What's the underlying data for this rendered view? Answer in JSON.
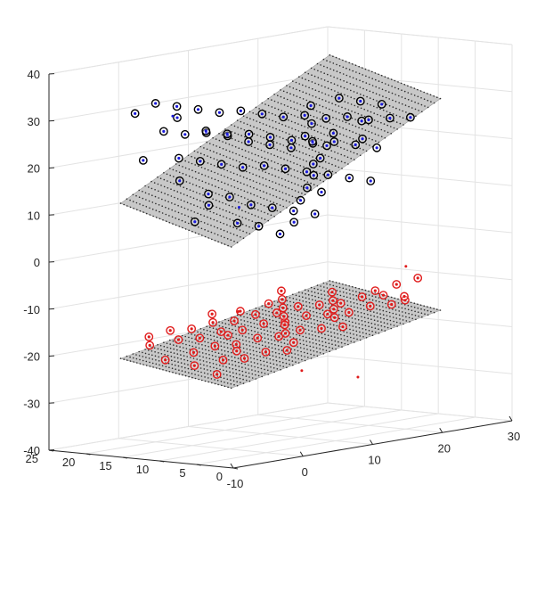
{
  "chart_data": {
    "type": "scatter3d",
    "title": "",
    "xlabel": "",
    "ylabel": "",
    "zlabel": "",
    "xlim": [
      -10,
      30
    ],
    "ylim": [
      0,
      25
    ],
    "zlim": [
      -40,
      40
    ],
    "x_ticks": [
      -10,
      0,
      10,
      20,
      30
    ],
    "y_ticks": [
      0,
      5,
      10,
      15,
      20,
      25
    ],
    "z_ticks": [
      -40,
      -30,
      -20,
      -10,
      0,
      10,
      20,
      30,
      40
    ],
    "grid": true,
    "colors": {
      "upper": "#1a1adb",
      "lower": "#e01b1b",
      "circle_upper": "#000000",
      "plane": "#c8c8c8"
    },
    "planes": [
      {
        "name": "upper plane",
        "x_range": [
          -5,
          25
        ],
        "y_range": [
          5,
          20
        ],
        "z_at_corners": [
          12,
          36,
          5,
          29
        ]
      },
      {
        "name": "lower plane",
        "x_range": [
          -5,
          25
        ],
        "y_range": [
          5,
          20
        ],
        "z_at_corners": [
          -21,
          -12,
          -25,
          -16
        ]
      }
    ],
    "series": [
      {
        "points": [
          [
            -4,
            19,
            31
          ],
          [
            -2,
            17,
            27
          ],
          [
            0,
            16,
            26
          ],
          [
            2,
            15,
            26
          ],
          [
            4,
            14,
            25
          ],
          [
            6,
            13,
            25
          ],
          [
            8,
            12,
            24
          ],
          [
            10,
            11,
            23
          ],
          [
            12,
            10,
            22
          ],
          [
            14,
            9,
            22
          ],
          [
            16,
            8,
            21
          ],
          [
            18,
            7,
            20
          ],
          [
            -3,
            14,
            22
          ],
          [
            -1,
            13,
            21
          ],
          [
            1,
            12,
            20
          ],
          [
            3,
            11,
            19
          ],
          [
            5,
            10,
            19
          ],
          [
            7,
            9,
            18
          ],
          [
            9,
            8,
            17
          ],
          [
            11,
            7,
            16
          ],
          [
            13,
            6,
            15
          ],
          [
            15,
            5,
            14
          ],
          [
            17,
            8,
            22
          ],
          [
            19,
            10,
            25
          ],
          [
            -5,
            12,
            18
          ],
          [
            -3,
            10,
            15
          ],
          [
            -1,
            9,
            14
          ],
          [
            1,
            8,
            12
          ],
          [
            3,
            7,
            11
          ],
          [
            5,
            6,
            10
          ],
          [
            7,
            5,
            9
          ],
          [
            9,
            6,
            13
          ],
          [
            11,
            9,
            18
          ],
          [
            13,
            11,
            22
          ],
          [
            15,
            13,
            25
          ],
          [
            17,
            15,
            28
          ],
          [
            0,
            20,
            32
          ],
          [
            2,
            19,
            31
          ],
          [
            4,
            18,
            30
          ],
          [
            6,
            17,
            29
          ],
          [
            8,
            16,
            29
          ],
          [
            10,
            15,
            28
          ],
          [
            12,
            14,
            27
          ],
          [
            14,
            13,
            27
          ],
          [
            16,
            12,
            26
          ],
          [
            18,
            11,
            26
          ],
          [
            20,
            10,
            25
          ],
          [
            22,
            9,
            25
          ],
          [
            -2,
            7,
            9
          ],
          [
            0,
            6,
            8
          ],
          [
            2,
            5,
            6
          ],
          [
            4,
            5,
            8
          ],
          [
            6,
            6,
            12
          ],
          [
            8,
            7,
            14
          ],
          [
            10,
            8,
            16
          ],
          [
            12,
            9,
            19
          ],
          [
            14,
            10,
            21
          ],
          [
            16,
            11,
            23
          ],
          [
            3,
            16,
            26
          ],
          [
            5,
            15,
            25
          ],
          [
            7,
            14,
            23
          ],
          [
            9,
            13,
            22
          ],
          [
            11,
            12,
            21
          ],
          [
            13,
            12,
            23
          ],
          [
            -4,
            9,
            13
          ],
          [
            20,
            14,
            29
          ],
          [
            22,
            13,
            28
          ],
          [
            24,
            12,
            27
          ],
          [
            -6,
            16,
            22
          ],
          [
            -6,
            9,
            10
          ],
          [
            26,
            10,
            24
          ],
          [
            1,
            18,
            29
          ]
        ]
      },
      {
        "points": [
          [
            -4,
            17,
            -18
          ],
          [
            -2,
            15,
            -17
          ],
          [
            0,
            14,
            -17
          ],
          [
            2,
            13,
            -16
          ],
          [
            4,
            12,
            -16
          ],
          [
            6,
            11,
            -15
          ],
          [
            8,
            10,
            -15
          ],
          [
            10,
            9,
            -14
          ],
          [
            12,
            8,
            -14
          ],
          [
            14,
            7,
            -14
          ],
          [
            16,
            6,
            -13
          ],
          [
            18,
            5,
            -13
          ],
          [
            -3,
            12,
            -19
          ],
          [
            -1,
            11,
            -18
          ],
          [
            1,
            10,
            -18
          ],
          [
            3,
            9,
            -17
          ],
          [
            5,
            8,
            -17
          ],
          [
            7,
            7,
            -16
          ],
          [
            9,
            6,
            -16
          ],
          [
            11,
            5,
            -16
          ],
          [
            13,
            8,
            -15
          ],
          [
            15,
            10,
            -14
          ],
          [
            17,
            12,
            -13
          ],
          [
            19,
            14,
            -12
          ],
          [
            -5,
            10,
            -21
          ],
          [
            -3,
            8,
            -20
          ],
          [
            -1,
            7,
            -20
          ],
          [
            1,
            6,
            -19
          ],
          [
            3,
            5,
            -19
          ],
          [
            5,
            6,
            -18
          ],
          [
            7,
            9,
            -17
          ],
          [
            9,
            11,
            -16
          ],
          [
            11,
            13,
            -15
          ],
          [
            13,
            15,
            -14
          ],
          [
            15,
            17,
            -13
          ],
          [
            17,
            19,
            -12
          ],
          [
            -2,
            19,
            -17
          ],
          [
            0,
            18,
            -16
          ],
          [
            2,
            17,
            -16
          ],
          [
            4,
            16,
            -15
          ],
          [
            6,
            15,
            -15
          ],
          [
            8,
            14,
            -14
          ],
          [
            10,
            13,
            -14
          ],
          [
            12,
            12,
            -13
          ],
          [
            14,
            11,
            -13
          ],
          [
            16,
            10,
            -13
          ],
          [
            18,
            9,
            -12
          ],
          [
            20,
            8,
            -12
          ],
          [
            -6,
            13,
            -20
          ],
          [
            -6,
            6,
            -22
          ],
          [
            22,
            11,
            -12
          ],
          [
            24,
            10,
            -11
          ],
          [
            21,
            6,
            -13
          ],
          [
            23,
            8,
            -13
          ],
          [
            6,
            18,
            -14
          ],
          [
            9,
            17,
            -14
          ],
          [
            3,
            13,
            -17
          ],
          [
            0,
            9,
            -19
          ],
          [
            12,
            16,
            -13
          ],
          [
            26,
            9,
            -10
          ]
        ]
      }
    ],
    "outliers": [
      [
        -6,
        12,
        32
      ],
      [
        -6,
        3,
        14
      ],
      [
        19,
        4,
        -5
      ],
      [
        -4,
        5,
        -9
      ],
      [
        3,
        3,
        -23
      ],
      [
        10,
        2,
        -26
      ]
    ]
  }
}
